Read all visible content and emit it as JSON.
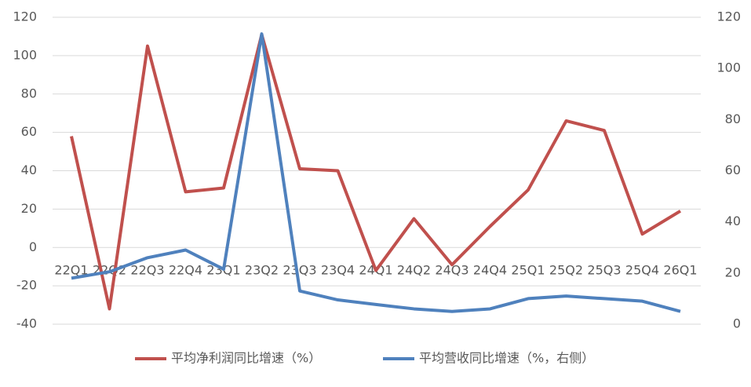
{
  "chart_data": {
    "type": "line",
    "categories": [
      "22Q1",
      "22Q2",
      "22Q3",
      "22Q4",
      "23Q1",
      "23Q2",
      "23Q3",
      "23Q4",
      "24Q1",
      "24Q2",
      "24Q3",
      "24Q4",
      "25Q1",
      "25Q2",
      "25Q3",
      "25Q4",
      "26Q1"
    ],
    "series": [
      {
        "name": "平均净利润同比增速（%）",
        "color": "#c0504d",
        "values": [
          58,
          -32,
          105,
          29,
          31,
          111,
          41,
          40,
          -12,
          15,
          -9,
          11,
          30,
          66,
          61,
          7,
          19
        ]
      },
      {
        "name": "平均营收同比增速（%，右侧）",
        "color": "#4f81bd",
        "axis": "y2",
        "values": [
          18,
          20.5,
          26,
          29,
          21.5,
          113.5,
          13,
          9.5,
          7.7,
          6,
          5,
          6,
          10,
          11,
          10,
          9,
          5
        ]
      }
    ],
    "ylim": [
      -40,
      120
    ],
    "yticks": [
      -40,
      -20,
      0,
      20,
      40,
      60,
      80,
      100,
      120
    ],
    "y2lim": [
      0,
      120
    ],
    "y2ticks": [
      0,
      20,
      40,
      60,
      80,
      100,
      120
    ],
    "grid": true,
    "legend": "bottom"
  }
}
